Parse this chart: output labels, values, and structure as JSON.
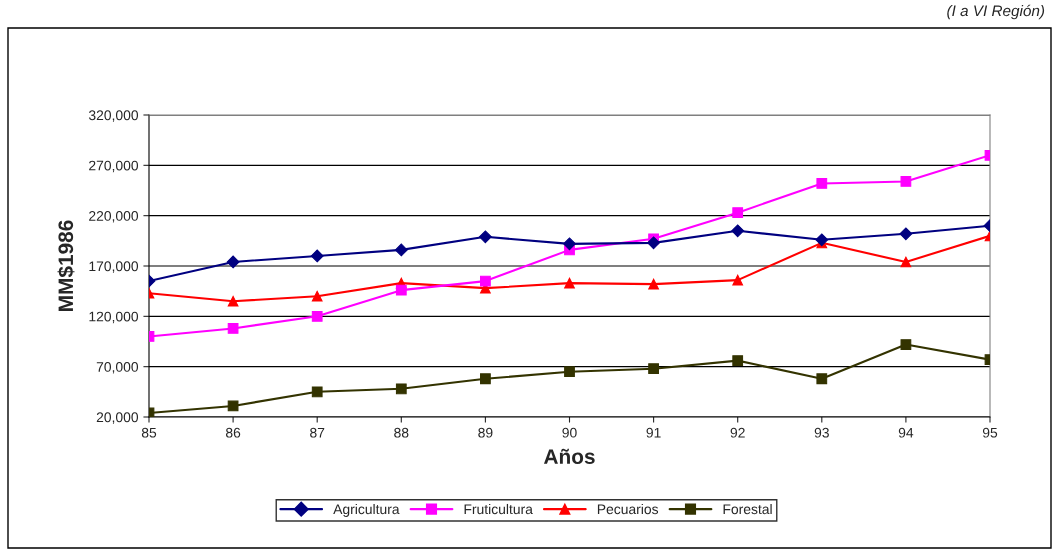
{
  "chart_data": {
    "type": "line",
    "xlabel": "Años",
    "ylabel": "MM$1986",
    "annotations": [
      "(I a VI Región)"
    ],
    "x": [
      85,
      86,
      87,
      88,
      89,
      90,
      91,
      92,
      93,
      94,
      95
    ],
    "series": [
      {
        "name": "Agricultura",
        "color": "#000080",
        "marker": "diamond",
        "values": [
          155000,
          174000,
          180000,
          186000,
          199000,
          192000,
          193000,
          205000,
          196000,
          202000,
          210000
        ]
      },
      {
        "name": "Fruticultura",
        "color": "#ff00ff",
        "marker": "square",
        "values": [
          100000,
          108000,
          120000,
          146000,
          155000,
          186000,
          197000,
          223000,
          252000,
          254000,
          280000
        ]
      },
      {
        "name": "Pecuarios",
        "color": "#ff0000",
        "marker": "triangle",
        "values": [
          143000,
          135000,
          140000,
          153000,
          148000,
          153000,
          152000,
          156000,
          193000,
          174000,
          200000
        ]
      },
      {
        "name": "Forestal",
        "color": "#333300",
        "marker": "square",
        "values": [
          24000,
          31000,
          45000,
          48000,
          58000,
          65000,
          68000,
          76000,
          58000,
          92000,
          77000
        ]
      }
    ],
    "xlim": [
      85,
      95
    ],
    "xticks": [
      85,
      86,
      87,
      88,
      89,
      90,
      91,
      92,
      93,
      94,
      95
    ],
    "ylim": [
      20000,
      320000
    ],
    "yticks": [
      {
        "value": 20000,
        "label": "20,000"
      },
      {
        "value": 70000,
        "label": "70,000"
      },
      {
        "value": 120000,
        "label": "120,000"
      },
      {
        "value": 170000,
        "label": "170,000"
      },
      {
        "value": 220000,
        "label": "220,000"
      },
      {
        "value": 270000,
        "label": "270,000"
      },
      {
        "value": 320000,
        "label": "320,000"
      }
    ],
    "grid": "y",
    "legend": "bottom",
    "line_style": "solid"
  }
}
